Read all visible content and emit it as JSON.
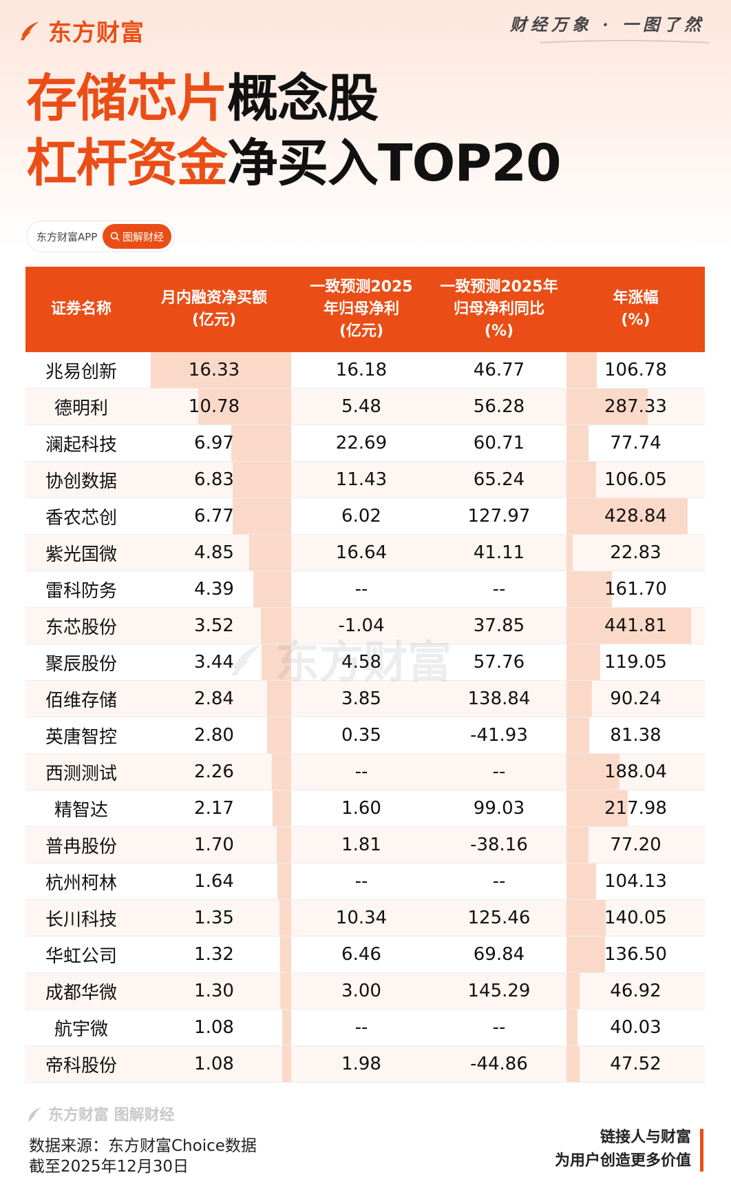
{
  "brand": {
    "name": "东方财富",
    "slogan": "财经万象 · 一图了然"
  },
  "title": {
    "line1_highlight": "存储芯片",
    "line1_rest": "概念股",
    "line2_highlight": "杠杆资金",
    "line2_rest": "净买入TOP20"
  },
  "app_pill": {
    "label": "东方财富APP",
    "tag": "图解财经"
  },
  "table": {
    "headers": [
      [
        "证券名称"
      ],
      [
        "月内融资净买额",
        "(亿元)"
      ],
      [
        "一致预测2025",
        "年归母净利",
        "(亿元)"
      ],
      [
        "一致预测2025年",
        "归母净利同比",
        "(%)"
      ],
      [
        "年涨幅",
        "(%)"
      ]
    ],
    "rows": [
      [
        "兆易创新",
        "16.33",
        "16.18",
        "46.77",
        "106.78"
      ],
      [
        "德明利",
        "10.78",
        "5.48",
        "56.28",
        "287.33"
      ],
      [
        "澜起科技",
        "6.97",
        "22.69",
        "60.71",
        "77.74"
      ],
      [
        "协创数据",
        "6.83",
        "11.43",
        "65.24",
        "106.05"
      ],
      [
        "香农芯创",
        "6.77",
        "6.02",
        "127.97",
        "428.84"
      ],
      [
        "紫光国微",
        "4.85",
        "16.64",
        "41.11",
        "22.83"
      ],
      [
        "雷科防务",
        "4.39",
        "--",
        "--",
        "161.70"
      ],
      [
        "东芯股份",
        "3.52",
        "-1.04",
        "37.85",
        "441.81"
      ],
      [
        "聚辰股份",
        "3.44",
        "4.58",
        "57.76",
        "119.05"
      ],
      [
        "佰维存储",
        "2.84",
        "3.85",
        "138.84",
        "90.24"
      ],
      [
        "英唐智控",
        "2.80",
        "0.35",
        "-41.93",
        "81.38"
      ],
      [
        "西测测试",
        "2.26",
        "--",
        "--",
        "188.04"
      ],
      [
        "精智达",
        "2.17",
        "1.60",
        "99.03",
        "217.98"
      ],
      [
        "普冉股份",
        "1.70",
        "1.81",
        "-38.16",
        "77.20"
      ],
      [
        "杭州柯林",
        "1.64",
        "--",
        "--",
        "104.13"
      ],
      [
        "长川科技",
        "1.35",
        "10.34",
        "125.46",
        "140.05"
      ],
      [
        "华虹公司",
        "1.32",
        "6.46",
        "69.84",
        "136.50"
      ],
      [
        "成都华微",
        "1.30",
        "3.00",
        "145.29",
        "46.92"
      ],
      [
        "航宇微",
        "1.08",
        "--",
        "--",
        "40.03"
      ],
      [
        "帝科股份",
        "1.08",
        "1.98",
        "-44.86",
        "47.52"
      ]
    ]
  },
  "watermark": "东方财富",
  "footer": {
    "brand": "东方财富 图解财经",
    "source": "数据来源：东方财富Choice数据",
    "date": "截至2025年12月30日",
    "motto1": "链接人与财富",
    "motto2": "为用户创造更多价值"
  },
  "colors": {
    "accent": "#ea4e16",
    "bar": "#fbd9c9",
    "row_alt": "#fdf6f2"
  }
}
